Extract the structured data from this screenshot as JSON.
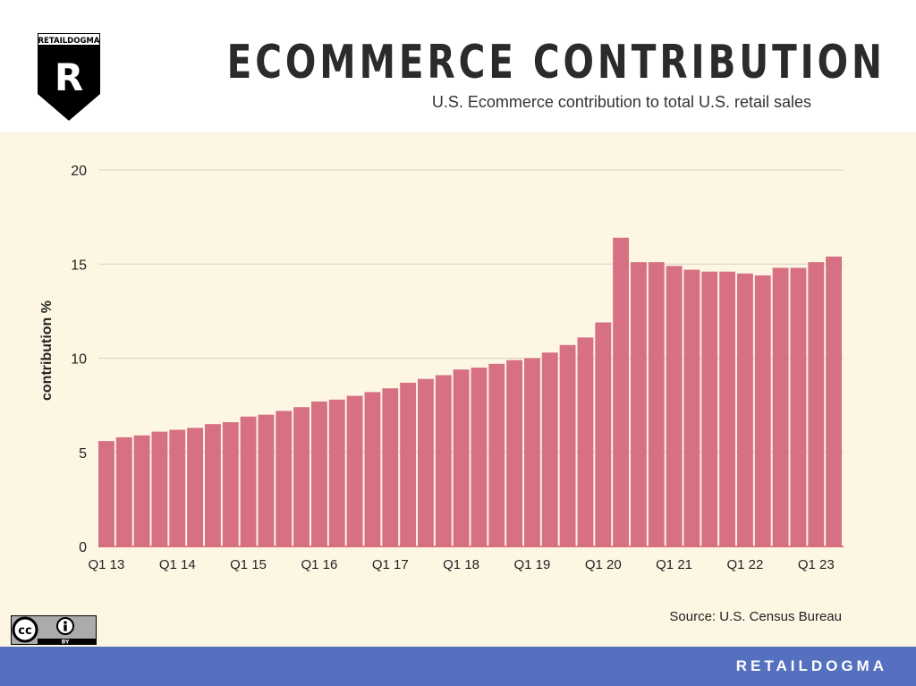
{
  "header": {
    "logo_text": "RETAILDOGMA",
    "logo_letter": "R",
    "title": "ECOMMERCE CONTRIBUTION",
    "subtitle": "U.S. Ecommerce contribution to total U.S. retail sales"
  },
  "chart_data": {
    "type": "bar",
    "ylabel": "contribution %",
    "xlabel": "",
    "ylim": [
      0,
      20
    ],
    "yticks": [
      0,
      5,
      10,
      15,
      20
    ],
    "grid": true,
    "categories": [
      "Q1 13",
      "Q2 13",
      "Q3 13",
      "Q4 13",
      "Q1 14",
      "Q2 14",
      "Q3 14",
      "Q4 14",
      "Q1 15",
      "Q2 15",
      "Q3 15",
      "Q4 15",
      "Q1 16",
      "Q2 16",
      "Q3 16",
      "Q4 16",
      "Q1 17",
      "Q2 17",
      "Q3 17",
      "Q4 17",
      "Q1 18",
      "Q2 18",
      "Q3 18",
      "Q4 18",
      "Q1 19",
      "Q2 19",
      "Q3 19",
      "Q4 19",
      "Q1 20",
      "Q2 20",
      "Q3 20",
      "Q4 20",
      "Q1 21",
      "Q2 21",
      "Q3 21",
      "Q4 21",
      "Q1 22",
      "Q2 22",
      "Q3 22",
      "Q4 22",
      "Q1 23",
      "Q2 23"
    ],
    "values": [
      5.6,
      5.8,
      5.9,
      6.1,
      6.2,
      6.3,
      6.5,
      6.6,
      6.9,
      7.0,
      7.2,
      7.4,
      7.7,
      7.8,
      8.0,
      8.2,
      8.4,
      8.7,
      8.9,
      9.1,
      9.4,
      9.5,
      9.7,
      9.9,
      10.0,
      10.3,
      10.7,
      11.1,
      11.9,
      16.4,
      15.1,
      15.1,
      14.9,
      14.7,
      14.6,
      14.6,
      14.5,
      14.4,
      14.8,
      14.8,
      15.1,
      15.4
    ],
    "xtick_labels": [
      "Q1 13",
      "Q1 14",
      "Q1 15",
      "Q1 16",
      "Q1 17",
      "Q1 18",
      "Q1 19",
      "Q1 20",
      "Q1 21",
      "Q1 22",
      "Q1 23"
    ],
    "bar_color": "#d67082",
    "grid_color": "#d8d2c2",
    "background": "#fdf6e3"
  },
  "source": "Source: U.S. Census Bureau",
  "license": {
    "cc": "cc",
    "by": "BY"
  },
  "footer": {
    "brand": "RETAILDOGMA",
    "color": "#5670c0"
  }
}
